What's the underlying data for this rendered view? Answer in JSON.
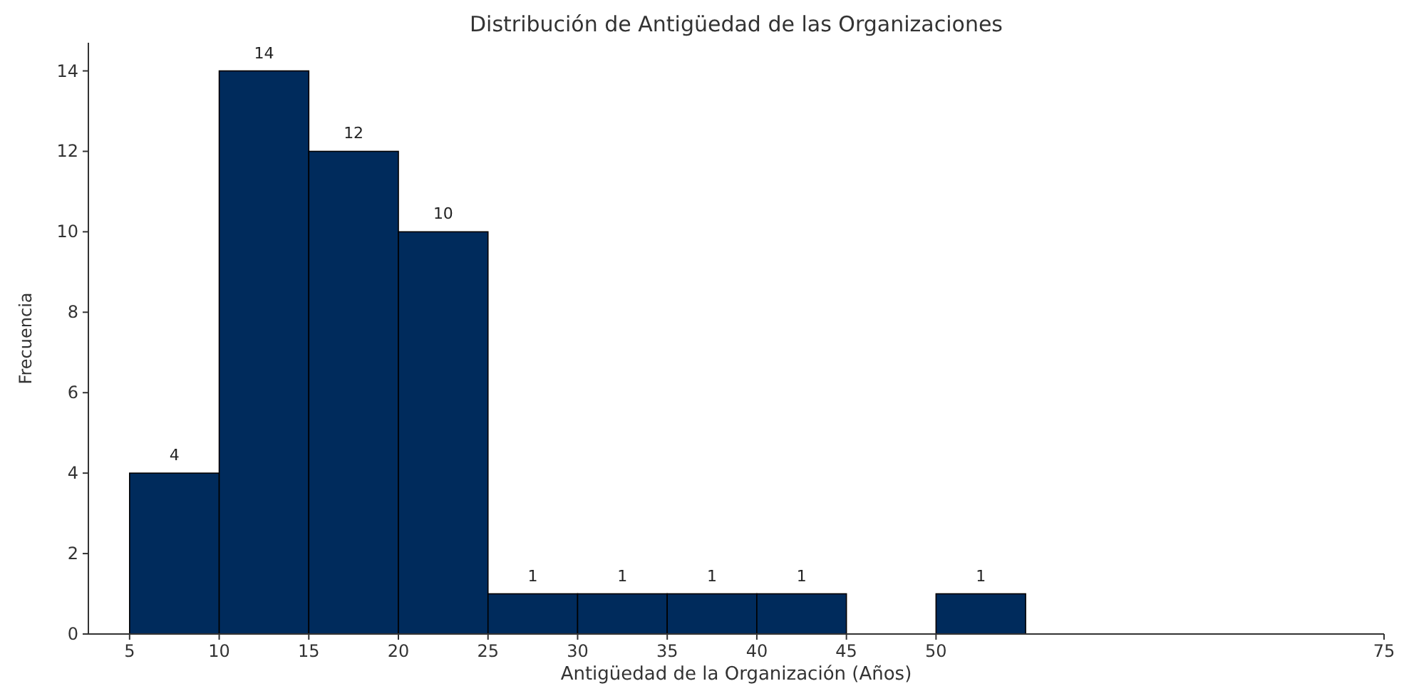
{
  "chart_data": {
    "type": "histogram",
    "title": "Distribución de Antigüedad de las Organizaciones",
    "xlabel": "Antigüedad de la Organización (Años)",
    "ylabel": "Frecuencia",
    "bins": [
      5,
      10,
      15,
      20,
      25,
      30,
      35,
      40,
      45,
      50,
      55
    ],
    "values": [
      4,
      14,
      12,
      10,
      1,
      1,
      1,
      1,
      0,
      1
    ],
    "value_labels": [
      "4",
      "14",
      "12",
      "10",
      "1",
      "1",
      "1",
      "1",
      null,
      "1"
    ],
    "color": "#002b5c",
    "xlim": [
      2.7,
      75
    ],
    "xticks": [
      5,
      10,
      15,
      20,
      25,
      30,
      35,
      40,
      45,
      50,
      75
    ],
    "ylim": [
      0,
      14.7
    ],
    "yticks": [
      0,
      2,
      4,
      6,
      8,
      10,
      12,
      14
    ],
    "grid": false
  }
}
